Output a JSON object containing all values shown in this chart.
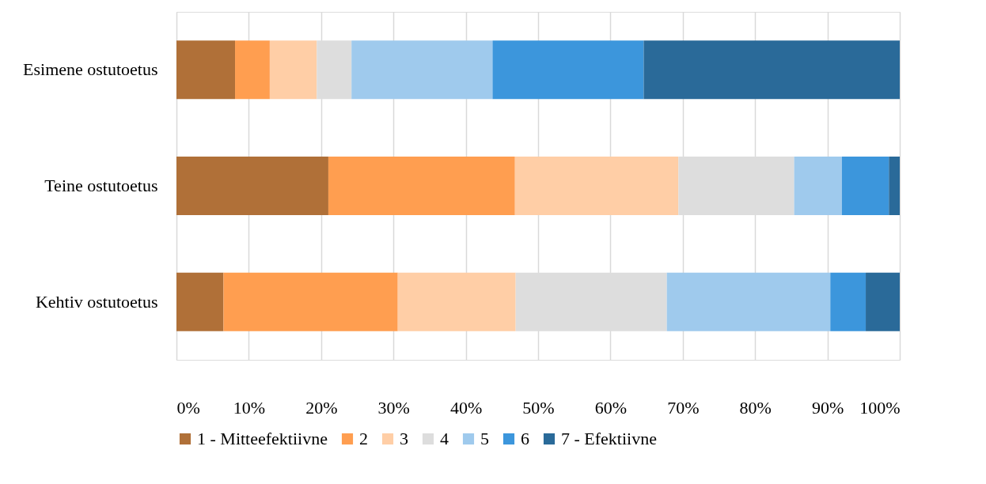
{
  "chart_data": {
    "type": "bar",
    "orientation": "horizontal",
    "stacked": true,
    "categories": [
      "Esimene ostutoetus",
      "Teine ostutoetus",
      "Kehtiv ostutoetus"
    ],
    "series": [
      {
        "name": "1 - Mitteefektiivne",
        "color": "#b07038",
        "values": [
          8.1,
          21.0,
          6.5
        ]
      },
      {
        "name": "2",
        "color": "#ff9e50",
        "values": [
          4.8,
          25.8,
          24.1
        ]
      },
      {
        "name": "3",
        "color": "#ffcea6",
        "values": [
          6.5,
          22.6,
          16.3
        ]
      },
      {
        "name": "4",
        "color": "#dddddd",
        "values": [
          4.8,
          16.0,
          20.9
        ]
      },
      {
        "name": "5",
        "color": "#9fcaed",
        "values": [
          19.5,
          6.6,
          22.6
        ]
      },
      {
        "name": "6",
        "color": "#3c96dc",
        "values": [
          20.9,
          6.5,
          4.9
        ]
      },
      {
        "name": "7 - Efektiivne",
        "color": "#2a6a99",
        "values": [
          35.4,
          1.5,
          4.7
        ]
      }
    ],
    "xlim": [
      0,
      100
    ],
    "xticks": [
      {
        "value": 0,
        "label": "0%"
      },
      {
        "value": 10,
        "label": "10%"
      },
      {
        "value": 20,
        "label": "20%"
      },
      {
        "value": 30,
        "label": "30%"
      },
      {
        "value": 40,
        "label": "40%"
      },
      {
        "value": 50,
        "label": "50%"
      },
      {
        "value": 60,
        "label": "60%"
      },
      {
        "value": 70,
        "label": "70%"
      },
      {
        "value": 80,
        "label": "80%"
      },
      {
        "value": 90,
        "label": "90%"
      },
      {
        "value": 100,
        "label": "100%"
      }
    ],
    "grid": "x",
    "legend": "bottom"
  }
}
